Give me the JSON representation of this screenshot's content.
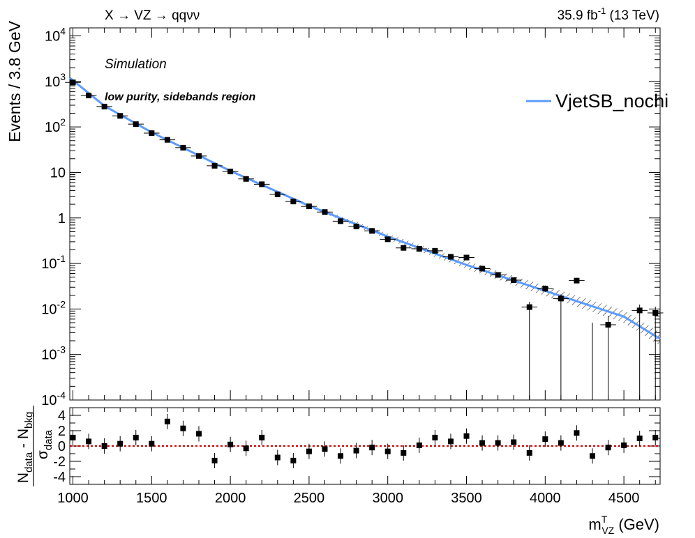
{
  "header": {
    "process": "X → VZ → qqνν",
    "lumi_value": "35.9 fb",
    "lumi_exp": "-1",
    "energy": "(13 TeV)"
  },
  "labels": {
    "simulation": "Simulation",
    "region": "low purity, sidebands region"
  },
  "chart_data": [
    {
      "type": "scatter",
      "title": "",
      "ylabel": "Events / 3.8 GeV",
      "yscale": "log",
      "xlim": [
        980,
        4730
      ],
      "ylim": [
        0.0001,
        15000
      ],
      "ytick_labels": [
        {
          "value": 10000,
          "base": "10",
          "exp": "4"
        },
        {
          "value": 1000,
          "base": "10",
          "exp": "3"
        },
        {
          "value": 100,
          "base": "10",
          "exp": "2"
        },
        {
          "value": 10,
          "base": "10",
          "exp": ""
        },
        {
          "value": 1,
          "base": "1",
          "exp": ""
        },
        {
          "value": 0.1,
          "base": "10",
          "exp": "-1"
        },
        {
          "value": 0.01,
          "base": "10",
          "exp": "-2"
        },
        {
          "value": 0.001,
          "base": "10",
          "exp": "-3"
        },
        {
          "value": 0.0001,
          "base": "10",
          "exp": "-4"
        }
      ],
      "legend": {
        "label": "VjetSB_nochi",
        "color": "#5b9bff",
        "position": "top-right"
      },
      "fit_curve": {
        "x": [
          980,
          1200,
          1500,
          2000,
          2500,
          3000,
          3500,
          4000,
          4500,
          4730
        ],
        "y": [
          1200,
          290,
          76,
          10.8,
          1.85,
          0.39,
          0.093,
          0.025,
          0.0068,
          0.0022
        ]
      },
      "points": {
        "x": [
          1000,
          1100,
          1200,
          1300,
          1400,
          1500,
          1600,
          1700,
          1800,
          1900,
          2000,
          2100,
          2200,
          2300,
          2400,
          2500,
          2600,
          2700,
          2800,
          2900,
          3000,
          3100,
          3200,
          3300,
          3400,
          3500,
          3600,
          3700,
          3800,
          3900,
          4000,
          4100,
          4200,
          4400,
          4600,
          4700
        ],
        "y": [
          950,
          490,
          280,
          175,
          115,
          73,
          52,
          35,
          23,
          14,
          10.5,
          7.2,
          5.5,
          3.3,
          2.3,
          1.8,
          1.35,
          0.85,
          0.65,
          0.52,
          0.34,
          0.22,
          0.21,
          0.19,
          0.14,
          0.135,
          0.077,
          0.056,
          0.043,
          0.011,
          0.028,
          0.017,
          0.042,
          0.0045,
          0.0093,
          0.0082
        ],
        "xerr": 50
      },
      "color": "#000000"
    },
    {
      "type": "scatter",
      "xlabel": "m",
      "xlabel_sup": "T",
      "xlabel_sub": "VZ",
      "xlabel_unit": " (GeV)",
      "ylabel_num": "N",
      "ylabel_num_sub1": "data",
      "ylabel_mid": " - N",
      "ylabel_num_sub2": "bkg",
      "ylabel_den": "σ",
      "ylabel_den_sub": "data",
      "xlim": [
        980,
        4730
      ],
      "ylim": [
        -5,
        5
      ],
      "xticks": [
        1000,
        1500,
        2000,
        2500,
        3000,
        3500,
        4000,
        4500
      ],
      "yticks": [
        4,
        2,
        0,
        -2,
        -4
      ],
      "reference_line": {
        "y": 0,
        "color": "#cc0000"
      },
      "points": {
        "x": [
          1000,
          1100,
          1200,
          1300,
          1400,
          1500,
          1600,
          1700,
          1800,
          1900,
          2000,
          2100,
          2200,
          2300,
          2400,
          2500,
          2600,
          2700,
          2800,
          2900,
          3000,
          3100,
          3200,
          3300,
          3400,
          3500,
          3600,
          3700,
          3800,
          3900,
          4000,
          4100,
          4200,
          4300,
          4400,
          4500,
          4600,
          4700
        ],
        "y": [
          1.1,
          0.6,
          0.0,
          0.3,
          1.1,
          0.3,
          3.2,
          2.3,
          1.6,
          -1.9,
          0.2,
          -0.3,
          1.1,
          -1.5,
          -1.9,
          -0.7,
          -0.4,
          -1.3,
          -0.6,
          -0.2,
          -0.7,
          -0.9,
          0.1,
          1.1,
          0.6,
          1.3,
          0.4,
          0.4,
          0.5,
          -0.9,
          0.9,
          0.4,
          1.7,
          -1.3,
          -0.2,
          0.1,
          1.0,
          1.1
        ],
        "yerr": 1
      },
      "color": "#000000"
    }
  ]
}
